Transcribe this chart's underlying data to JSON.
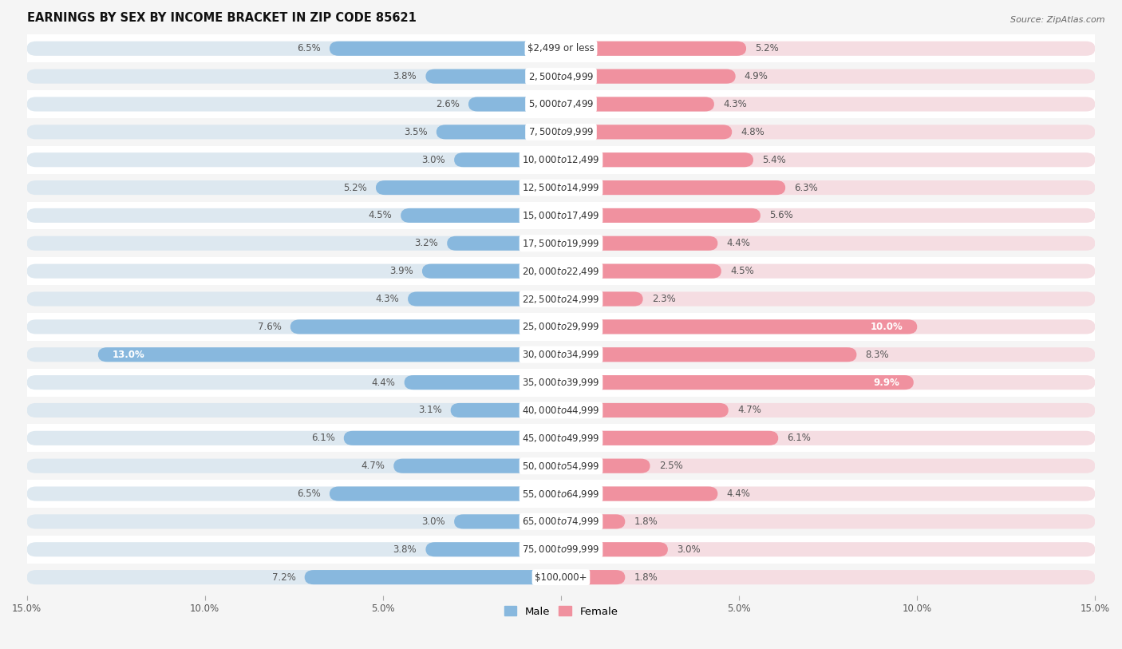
{
  "title": "EARNINGS BY SEX BY INCOME BRACKET IN ZIP CODE 85621",
  "source": "Source: ZipAtlas.com",
  "categories": [
    "$2,499 or less",
    "$2,500 to $4,999",
    "$5,000 to $7,499",
    "$7,500 to $9,999",
    "$10,000 to $12,499",
    "$12,500 to $14,999",
    "$15,000 to $17,499",
    "$17,500 to $19,999",
    "$20,000 to $22,499",
    "$22,500 to $24,999",
    "$25,000 to $29,999",
    "$30,000 to $34,999",
    "$35,000 to $39,999",
    "$40,000 to $44,999",
    "$45,000 to $49,999",
    "$50,000 to $54,999",
    "$55,000 to $64,999",
    "$65,000 to $74,999",
    "$75,000 to $99,999",
    "$100,000+"
  ],
  "male": [
    6.5,
    3.8,
    2.6,
    3.5,
    3.0,
    5.2,
    4.5,
    3.2,
    3.9,
    4.3,
    7.6,
    13.0,
    4.4,
    3.1,
    6.1,
    4.7,
    6.5,
    3.0,
    3.8,
    7.2
  ],
  "female": [
    5.2,
    4.9,
    4.3,
    4.8,
    5.4,
    6.3,
    5.6,
    4.4,
    4.5,
    2.3,
    10.0,
    8.3,
    9.9,
    4.7,
    6.1,
    2.5,
    4.4,
    1.8,
    3.0,
    1.8
  ],
  "male_color": "#88b8de",
  "female_color": "#f0919f",
  "bg_color_even": "#f5f5f5",
  "bg_color_odd": "#ffffff",
  "bar_bg_color": "#dde8f0",
  "bar_bg_female_color": "#f5dde2",
  "axis_max": 15.0,
  "bar_height": 0.52,
  "label_fontsize": 8.5,
  "cat_fontsize": 8.5,
  "title_fontsize": 10.5,
  "source_fontsize": 8.0,
  "tick_fontsize": 8.5
}
